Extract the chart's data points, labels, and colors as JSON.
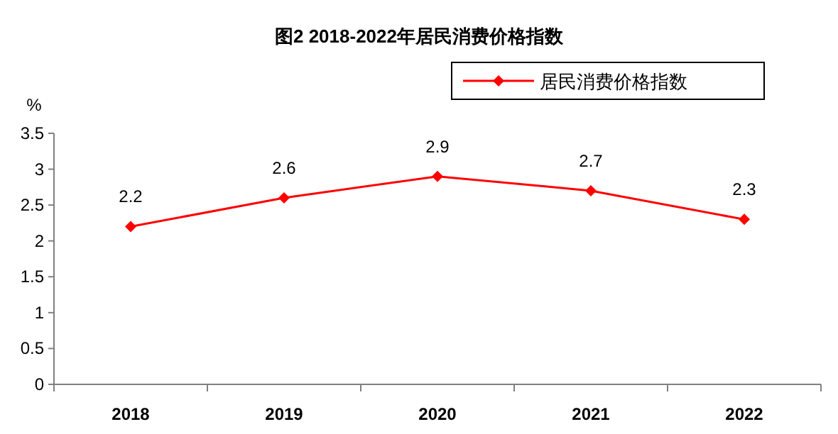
{
  "chart_data": {
    "type": "line",
    "title": "图2  2018-2022年居民消费价格指数",
    "ylabel": "%",
    "categories": [
      "2018",
      "2019",
      "2020",
      "2021",
      "2022"
    ],
    "series": [
      {
        "name": "居民消费价格指数",
        "color": "#ff0000",
        "values": [
          2.2,
          2.6,
          2.9,
          2.7,
          2.3
        ]
      }
    ],
    "ylim": [
      0,
      3.5
    ],
    "yticks": [
      0,
      0.5,
      1,
      1.5,
      2,
      2.5,
      3,
      3.5
    ],
    "data_labels": true,
    "legend": "top right",
    "marker": "diamond",
    "line_style": "solid",
    "grid": false
  }
}
